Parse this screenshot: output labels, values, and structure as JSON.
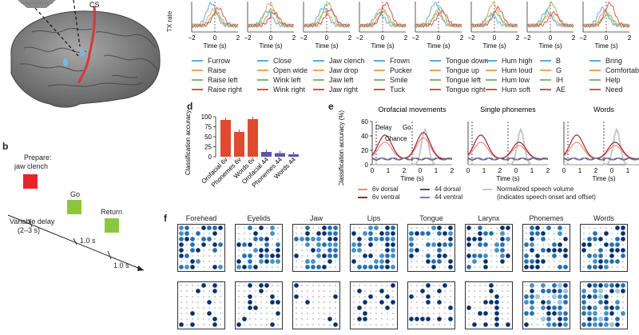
{
  "panel_letters": {
    "b": "b",
    "d": "d",
    "e": "e",
    "f": "f"
  },
  "panel_a": {
    "cs_label": "CS"
  },
  "panel_c": {
    "ylabel": "TX rate",
    "xlabel": "Time (s)",
    "ticks": [
      "−2",
      "0",
      "2"
    ],
    "legend": [
      [
        {
          "label": "Furrow",
          "color": "#5aa9e6"
        },
        {
          "label": "Raise",
          "color": "#f0a35e"
        },
        {
          "label": "Raise left",
          "color": "#7cbf6b"
        },
        {
          "label": "Raise right",
          "color": "#d9534f"
        }
      ],
      [
        {
          "label": "Close",
          "color": "#5aa9e6"
        },
        {
          "label": "Open wide",
          "color": "#f0a35e"
        },
        {
          "label": "Wink left",
          "color": "#7cbf6b"
        },
        {
          "label": "Wink right",
          "color": "#d9534f"
        }
      ],
      [
        {
          "label": "Jaw clench",
          "color": "#5aa9e6"
        },
        {
          "label": "Jaw drop",
          "color": "#f0a35e"
        },
        {
          "label": "Jaw left",
          "color": "#7cbf6b"
        },
        {
          "label": "Jaw right",
          "color": "#d9534f"
        }
      ],
      [
        {
          "label": "Frown",
          "color": "#5aa9e6"
        },
        {
          "label": "Pucker",
          "color": "#f0a35e"
        },
        {
          "label": "Smile",
          "color": "#7cbf6b"
        },
        {
          "label": "Tuck",
          "color": "#d9534f"
        }
      ],
      [
        {
          "label": "Tongue down",
          "color": "#5aa9e6"
        },
        {
          "label": "Tongue up",
          "color": "#f0a35e"
        },
        {
          "label": "Tongue left",
          "color": "#7cbf6b"
        },
        {
          "label": "Tongue right",
          "color": "#d9534f"
        }
      ],
      [
        {
          "label": "Hum high",
          "color": "#5aa9e6"
        },
        {
          "label": "Hum loud",
          "color": "#f0a35e"
        },
        {
          "label": "Hum low",
          "color": "#7cbf6b"
        },
        {
          "label": "Hum soft",
          "color": "#d9534f"
        }
      ],
      [
        {
          "label": "B",
          "color": "#5aa9e6"
        },
        {
          "label": "G",
          "color": "#f0a35e"
        },
        {
          "label": "IH",
          "color": "#7cbf6b"
        },
        {
          "label": "AE",
          "color": "#d9534f"
        }
      ],
      [
        {
          "label": "Bring",
          "color": "#5aa9e6"
        },
        {
          "label": "Comfortable",
          "color": "#f0a35e"
        },
        {
          "label": "Help",
          "color": "#7cbf6b"
        },
        {
          "label": "Need",
          "color": "#d9534f"
        }
      ]
    ]
  },
  "panel_b": {
    "prepare": "Prepare:",
    "prepare_word": "jaw clench",
    "go": "Go",
    "return": "Return",
    "variable_delay": "Variable delay",
    "delay_range": "(2–3 s)",
    "dur1": "1.0 s",
    "dur2": "1.0 s",
    "colors": {
      "prepare": "#e8242a",
      "go": "#8cc63f",
      "return": "#8cc63f"
    }
  },
  "chart_data": [
    {
      "type": "bar",
      "panel": "d",
      "ylabel": "Classification accuracy (%)",
      "ylim": [
        0,
        100
      ],
      "yticks": [
        "0",
        "25",
        "50",
        "75",
        "100"
      ],
      "categories": [
        "Orofacial 6v",
        "Phonemes 6v",
        "Words 6v",
        "Orofacial 44",
        "Phonemes 44",
        "Words 44"
      ],
      "values": [
        92,
        62,
        94,
        12,
        9,
        6
      ],
      "colors": [
        "#e04a2f",
        "#e04a2f",
        "#e04a2f",
        "#5b55a8",
        "#5b55a8",
        "#5b55a8"
      ]
    },
    {
      "type": "line",
      "panel": "e",
      "ylabel": "Classification accuracy (%)",
      "xlabel": "Time (s)",
      "yticks": [
        "0",
        "20",
        "40",
        "60"
      ],
      "xticks": [
        "0",
        "1",
        "2",
        "0",
        "1",
        "2"
      ],
      "subplots": [
        "Orofacial movements",
        "Single phonemes",
        "Words"
      ],
      "annotations": {
        "delay": "Delay",
        "go": "Go",
        "chance": "Chance"
      },
      "legend": [
        {
          "label": "6v dorsal",
          "color": "#f08a7a"
        },
        {
          "label": "6v ventral",
          "color": "#a3232a"
        },
        {
          "label": "44 dorsal",
          "color": "#555555"
        },
        {
          "label": "44 ventral",
          "color": "#7b73c8"
        },
        {
          "label": "Normalized speech volume",
          "color": "#c8c8c8"
        },
        {
          "label": "(indicates speech onset and offset)",
          "color": ""
        }
      ]
    }
  ],
  "panel_f": {
    "titles": [
      "Forehead",
      "Eyelids",
      "Jaw",
      "Lips",
      "Tongue",
      "Larynx",
      "Phonemes",
      "Words"
    ]
  }
}
